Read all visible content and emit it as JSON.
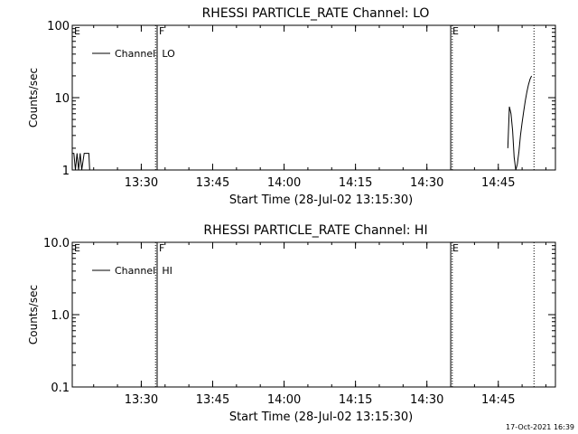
{
  "footer": {
    "timestamp": "17-Oct-2021 16:39"
  },
  "chart_data": [
    {
      "type": "line",
      "title": "RHESSI PARTICLE_RATE Channel: LO",
      "xlabel": "Start Time (28-Jul-02 13:15:30)",
      "ylabel": "Counts/sec",
      "yscale": "log",
      "xlim": [
        "13:15:30",
        "14:57:00"
      ],
      "ylim": [
        1,
        100
      ],
      "x_ticks": [
        "13:30",
        "13:45",
        "14:00",
        "14:15",
        "14:30",
        "14:45"
      ],
      "y_ticks": [
        "1",
        "10",
        "100"
      ],
      "legend": {
        "placement": "top-left",
        "entries": [
          "Channel: LO"
        ]
      },
      "markers": [
        {
          "label": "E",
          "time": "13:15:30",
          "style": "solid"
        },
        {
          "label": "F",
          "time": "13:33:20",
          "style": "solid"
        },
        {
          "label": "E",
          "time": "14:35:00",
          "style": "solid"
        },
        {
          "label": "",
          "time": "13:33:00",
          "style": "dotted"
        },
        {
          "label": "",
          "time": "14:35:20",
          "style": "dotted"
        },
        {
          "label": "",
          "time": "14:52:30",
          "style": "dotted"
        }
      ],
      "series": [
        {
          "name": "Channel: LO",
          "segments": [
            {
              "x": [
                "13:15:30",
                "13:15:50",
                "13:16:10",
                "13:16:30",
                "13:16:50",
                "13:17:10",
                "13:17:30",
                "13:18:00",
                "13:18:30",
                "13:19:00",
                "13:19:10"
              ],
              "y": [
                1.7,
                1.7,
                1.0,
                1.7,
                1.0,
                1.7,
                1.0,
                1.7,
                1.7,
                1.7,
                1.0
              ]
            },
            {
              "x": [
                "14:47:00",
                "14:47:20",
                "14:47:40",
                "14:48:00",
                "14:48:20",
                "14:48:40",
                "14:49:00",
                "14:49:20",
                "14:49:40",
                "14:50:00",
                "14:50:20",
                "14:50:40",
                "14:51:00",
                "14:51:20",
                "14:51:40",
                "14:52:00"
              ],
              "y": [
                2.0,
                7.5,
                6.0,
                3.5,
                1.5,
                1.0,
                1.2,
                1.8,
                3.0,
                4.5,
                6.5,
                9.0,
                12.0,
                15.0,
                18.0,
                20.0
              ]
            }
          ]
        }
      ]
    },
    {
      "type": "line",
      "title": "RHESSI PARTICLE_RATE Channel: HI",
      "xlabel": "Start Time (28-Jul-02 13:15:30)",
      "ylabel": "Counts/sec",
      "yscale": "log",
      "xlim": [
        "13:15:30",
        "14:57:00"
      ],
      "ylim": [
        0.1,
        10
      ],
      "x_ticks": [
        "13:30",
        "13:45",
        "14:00",
        "14:15",
        "14:30",
        "14:45"
      ],
      "y_ticks": [
        "0.1",
        "1.0",
        "10.0"
      ],
      "legend": {
        "placement": "top-left",
        "entries": [
          "Channel: HI"
        ]
      },
      "markers": [
        {
          "label": "E",
          "time": "13:15:30",
          "style": "solid"
        },
        {
          "label": "F",
          "time": "13:33:20",
          "style": "solid"
        },
        {
          "label": "E",
          "time": "14:35:00",
          "style": "solid"
        },
        {
          "label": "",
          "time": "13:33:00",
          "style": "dotted"
        },
        {
          "label": "",
          "time": "14:35:20",
          "style": "dotted"
        },
        {
          "label": "",
          "time": "14:52:30",
          "style": "dotted"
        }
      ],
      "series": [
        {
          "name": "Channel: HI",
          "segments": []
        }
      ]
    }
  ]
}
